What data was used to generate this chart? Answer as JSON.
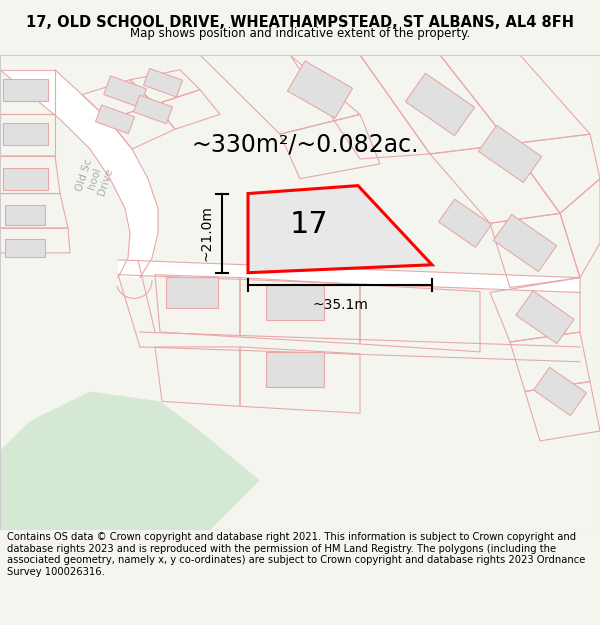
{
  "title": "17, OLD SCHOOL DRIVE, WHEATHAMPSTEAD, ST ALBANS, AL4 8FH",
  "subtitle": "Map shows position and indicative extent of the property.",
  "area_text": "~330m²/~0.082ac.",
  "width_text": "~35.1m",
  "height_text": "~21.0m",
  "property_number": "17",
  "footer_text": "Contains OS data © Crown copyright and database right 2021. This information is subject to Crown copyright and database rights 2023 and is reproduced with the permission of HM Land Registry. The polygons (including the associated geometry, namely x, y co-ordinates) are subject to Crown copyright and database rights 2023 Ordnance Survey 100026316.",
  "bg_color": "#f5f5f0",
  "map_bg": "#ffffff",
  "road_outline_color": "#e8a8a8",
  "building_fill": "#e0e0e0",
  "building_outline": "#e8a8a8",
  "highlight_color": "#ff0000",
  "highlight_fill": "#e8e8e8",
  "green_area_color": "#d4e8d4",
  "road_label_color": "#aaaaaa",
  "title_fontsize": 10.5,
  "subtitle_fontsize": 8.5,
  "footer_fontsize": 7.2,
  "area_fontsize": 17,
  "number_fontsize": 22,
  "dim_fontsize": 10,
  "figsize": [
    6.0,
    6.25
  ],
  "dpi": 100,
  "map_xlim": [
    0,
    600
  ],
  "map_ylim": [
    0,
    480
  ]
}
